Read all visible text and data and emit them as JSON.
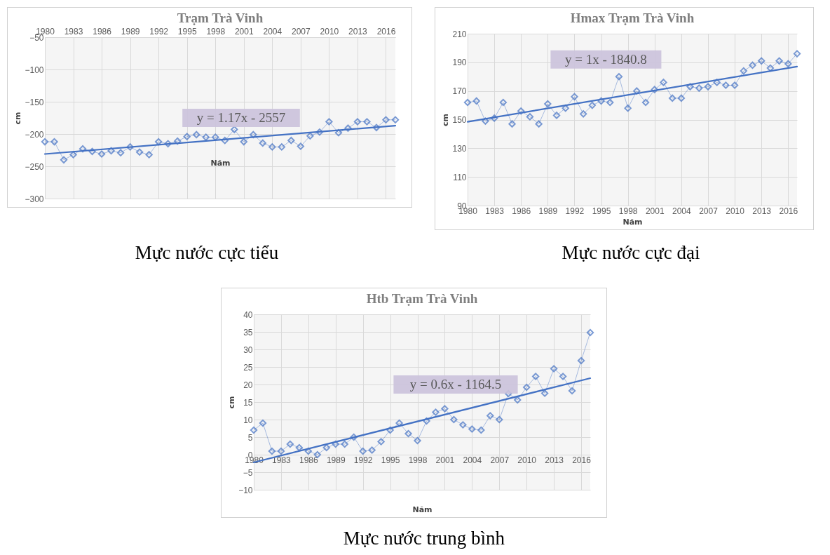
{
  "chart_data": [
    {
      "type": "line",
      "title": "Trạm Trà Vinh",
      "xlabel": "Năm",
      "ylabel": "cm",
      "xlim": [
        1980,
        2017
      ],
      "xticks": [
        1980,
        1983,
        1986,
        1989,
        1992,
        1995,
        1998,
        2001,
        2004,
        2007,
        2010,
        2013,
        2016
      ],
      "ylim": [
        -300,
        -50
      ],
      "yticks": [
        -300,
        -250,
        -200,
        -150,
        -100,
        -50
      ],
      "grid": true,
      "marker": "diamond",
      "series": [
        {
          "color": "#4472c4",
          "x": [
            1980,
            1981,
            1982,
            1983,
            1984,
            1985,
            1986,
            1987,
            1988,
            1989,
            1990,
            1991,
            1992,
            1993,
            1994,
            1995,
            1996,
            1997,
            1998,
            1999,
            2000,
            2001,
            2002,
            2003,
            2004,
            2005,
            2006,
            2007,
            2008,
            2009,
            2010,
            2011,
            2012,
            2013,
            2014,
            2015,
            2016,
            2017
          ],
          "values": [
            -212,
            -212,
            -240,
            -232,
            -223,
            -227,
            -231,
            -226,
            -229,
            -220,
            -228,
            -232,
            -212,
            -215,
            -211,
            -204,
            -201,
            -205,
            -205,
            -210,
            -193,
            -212,
            -201,
            -214,
            -220,
            -220,
            -210,
            -219,
            -203,
            -197,
            -181,
            -198,
            -191,
            -181,
            -181,
            -190,
            -178,
            -178
          ]
        },
        {
          "type": "line",
          "marker": "none",
          "color": "#4472c4",
          "x": [
            1980,
            2017
          ],
          "values": [
            -231,
            -187
          ]
        }
      ],
      "annotations": [
        "y = 1.17x - 2557",
        "Mực nước cực tiểu"
      ]
    },
    {
      "type": "line",
      "title": "Hmax Trạm Trà Vinh",
      "xlabel": "Năm",
      "ylabel": "cm",
      "xlim": [
        1980,
        2017
      ],
      "xticks": [
        1980,
        1983,
        1986,
        1989,
        1992,
        1995,
        1998,
        2001,
        2004,
        2007,
        2010,
        2013,
        2016
      ],
      "ylim": [
        90,
        210
      ],
      "yticks": [
        90,
        110,
        130,
        150,
        170,
        190,
        210
      ],
      "grid": true,
      "marker": "diamond",
      "series": [
        {
          "color": "#4472c4",
          "x": [
            1980,
            1981,
            1982,
            1983,
            1984,
            1985,
            1986,
            1987,
            1988,
            1989,
            1990,
            1991,
            1992,
            1993,
            1994,
            1995,
            1996,
            1997,
            1998,
            1999,
            2000,
            2001,
            2002,
            2003,
            2004,
            2005,
            2006,
            2007,
            2008,
            2009,
            2010,
            2011,
            2012,
            2013,
            2014,
            2015,
            2016,
            2017
          ],
          "values": [
            162,
            163,
            149,
            151,
            162,
            147,
            156,
            152,
            147,
            161,
            153,
            158,
            166,
            154,
            160,
            163,
            162,
            180,
            158,
            170,
            162,
            171,
            176,
            165,
            165,
            173,
            172,
            173,
            176,
            174,
            174,
            184,
            188,
            191,
            186,
            191,
            189,
            196
          ]
        },
        {
          "type": "line",
          "marker": "none",
          "color": "#4472c4",
          "x": [
            1980,
            2017
          ],
          "values": [
            148.5,
            187
          ]
        }
      ],
      "annotations": [
        "y = 1x - 1840.8",
        "Mực nước cực đại"
      ]
    },
    {
      "type": "line",
      "title": "Htb Trạm Trà Vinh",
      "xlabel": "Năm",
      "ylabel": "cm",
      "xlim": [
        1980,
        2017
      ],
      "xticks": [
        1980,
        1983,
        1986,
        1989,
        1992,
        1995,
        1998,
        2001,
        2004,
        2007,
        2010,
        2013,
        2016
      ],
      "ylim": [
        -10,
        40
      ],
      "yticks": [
        -10,
        -5,
        0,
        5,
        10,
        15,
        20,
        25,
        30,
        35,
        40
      ],
      "grid": true,
      "marker": "diamond",
      "series": [
        {
          "color": "#4472c4",
          "x": [
            1980,
            1981,
            1982,
            1983,
            1984,
            1985,
            1986,
            1987,
            1988,
            1989,
            1990,
            1991,
            1992,
            1993,
            1994,
            1995,
            1996,
            1997,
            1998,
            1999,
            2000,
            2001,
            2002,
            2003,
            2004,
            2005,
            2006,
            2007,
            2008,
            2009,
            2010,
            2011,
            2012,
            2013,
            2014,
            2015,
            2016,
            2017
          ],
          "values": [
            7,
            9,
            1,
            1,
            3,
            2,
            1,
            0,
            2,
            3,
            3,
            5,
            1,
            1.3,
            3.7,
            7,
            9,
            6,
            4,
            9.6,
            12.1,
            13.1,
            10,
            8.5,
            7.3,
            7,
            11.1,
            10,
            17.4,
            15.6,
            19.2,
            22.3,
            17.5,
            24.5,
            22.3,
            18.2,
            26.8,
            34.8
          ]
        },
        {
          "type": "line",
          "marker": "none",
          "color": "#4472c4",
          "x": [
            1980,
            2017
          ],
          "values": [
            -2.2,
            21.8
          ]
        }
      ],
      "annotations": [
        "y = 0.6x - 1164.5",
        "Mực nước trung bình"
      ]
    }
  ]
}
